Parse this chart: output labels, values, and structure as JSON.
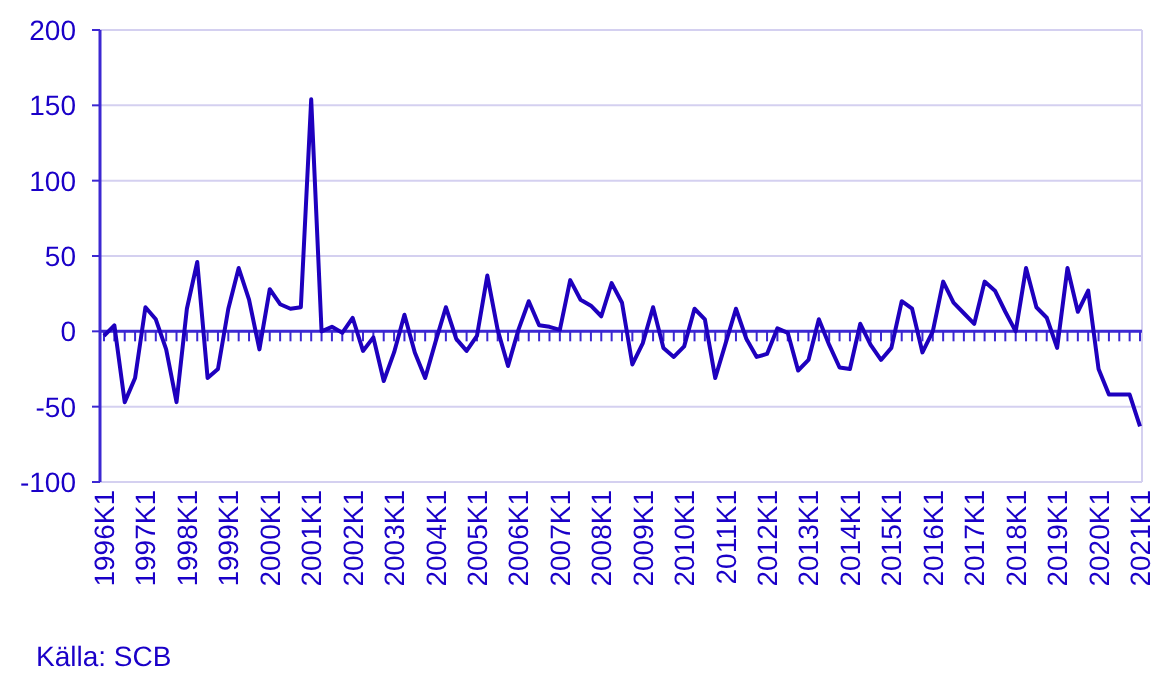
{
  "chart_data": {
    "type": "line",
    "categories": [
      "1996K1",
      null,
      null,
      null,
      "1997K1",
      null,
      null,
      null,
      "1998K1",
      null,
      null,
      null,
      "1999K1",
      null,
      null,
      null,
      "2000K1",
      null,
      null,
      null,
      "2001K1",
      null,
      null,
      null,
      "2002K1",
      null,
      null,
      null,
      "2003K1",
      null,
      null,
      null,
      "2004K1",
      null,
      null,
      null,
      "2005K1",
      null,
      null,
      null,
      "2006K1",
      null,
      null,
      null,
      "2007K1",
      null,
      null,
      null,
      "2008K1",
      null,
      null,
      null,
      "2009K1",
      null,
      null,
      null,
      "2010K1",
      null,
      null,
      null,
      "2011K1",
      null,
      null,
      null,
      "2012K1",
      null,
      null,
      null,
      "2013K1",
      null,
      null,
      null,
      "2014K1",
      null,
      null,
      null,
      "2015K1",
      null,
      null,
      null,
      "2016K1",
      null,
      null,
      null,
      "2017K1",
      null,
      null,
      null,
      "2018K1",
      null,
      null,
      null,
      "2019K1",
      null,
      null,
      null,
      "2020K1",
      null,
      null,
      null,
      "2021K1"
    ],
    "series": [
      {
        "color": "#1e00be",
        "values": [
          -3,
          4,
          -47,
          -31,
          16,
          8,
          -12,
          -47,
          15,
          46,
          -31,
          -25,
          15,
          42,
          21,
          -12,
          28,
          18,
          15,
          16,
          154,
          0,
          3,
          -1,
          9,
          -13,
          -4,
          -33,
          -14,
          11,
          -14,
          -31,
          -7,
          16,
          -5,
          -13,
          -3,
          37,
          1,
          -23,
          1,
          20,
          4,
          3,
          1,
          34,
          21,
          17,
          10,
          32,
          19,
          -22,
          -8,
          16,
          -11,
          -17,
          -10,
          15,
          8,
          -31,
          -8,
          15,
          -5,
          -17,
          -15,
          2,
          -1,
          -26,
          -19,
          8,
          -9,
          -24,
          -25,
          5,
          -9,
          -19,
          -11,
          20,
          15,
          -14,
          0,
          33,
          19,
          12,
          5,
          33,
          27,
          13,
          0,
          42,
          16,
          9,
          -11,
          42,
          13,
          27,
          -25,
          -42,
          -42,
          -42,
          -63
        ]
      }
    ],
    "ylim": [
      -100,
      200
    ],
    "yticks": [
      -100,
      -50,
      0,
      50,
      100,
      150,
      200
    ],
    "grid": "y",
    "ref_lines": [
      {
        "axis": "y",
        "value": 0,
        "color": "#3c28d2"
      }
    ],
    "annotations": [
      "Källa: SCB"
    ]
  }
}
